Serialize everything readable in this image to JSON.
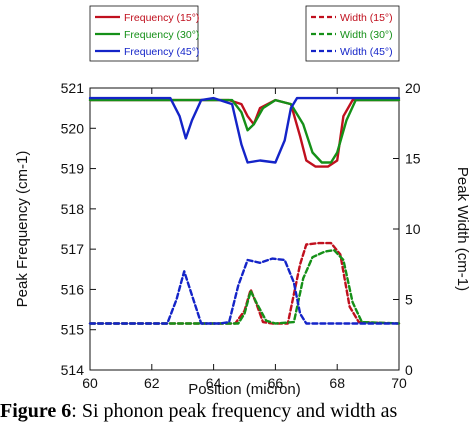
{
  "chart_data": {
    "type": "line",
    "xlabel": "Position (micron)",
    "ylabel_left": "Peak Frequency (cm-1)",
    "ylabel_right": "Peak Width (cm-1)",
    "xlim": [
      60,
      70
    ],
    "ylim_left": [
      514,
      521
    ],
    "ylim_right": [
      0,
      20
    ],
    "xticks": [
      60,
      62,
      64,
      66,
      68,
      70
    ],
    "yticks_left": [
      514,
      515,
      516,
      517,
      518,
      519,
      520,
      521
    ],
    "yticks_right": [
      0,
      5,
      10,
      15,
      20
    ],
    "grid": false,
    "legend_left": {
      "placement": "top-left",
      "entries": [
        {
          "label": "Frequency (15°)",
          "color": "#c0101e",
          "dash": "solid"
        },
        {
          "label": "Frequency (30°)",
          "color": "#159018",
          "dash": "solid"
        },
        {
          "label": "Frequency (45°)",
          "color": "#1424c8",
          "dash": "solid"
        }
      ]
    },
    "legend_right": {
      "placement": "top-right",
      "entries": [
        {
          "label": "Width (15°)",
          "color": "#c0101e",
          "dash": "dashed"
        },
        {
          "label": "Width (30°)",
          "color": "#159018",
          "dash": "dashed"
        },
        {
          "label": "Width (45°)",
          "color": "#1424c8",
          "dash": "dashed"
        }
      ]
    },
    "series": [
      {
        "name": "Frequency (15°)",
        "axis": "left",
        "color": "#c0101e",
        "dash": "solid",
        "x": [
          60,
          64.5,
          64.9,
          65.1,
          65.3,
          65.5,
          66.0,
          66.5,
          66.8,
          67.0,
          67.3,
          67.7,
          68.0,
          68.2,
          68.5,
          70
        ],
        "y": [
          520.7,
          520.7,
          520.6,
          520.3,
          520.1,
          520.5,
          520.7,
          520.6,
          519.8,
          519.2,
          519.05,
          519.05,
          519.2,
          520.3,
          520.7,
          520.7
        ]
      },
      {
        "name": "Frequency (30°)",
        "axis": "left",
        "color": "#159018",
        "dash": "solid",
        "x": [
          60,
          64.6,
          64.9,
          65.1,
          65.3,
          65.6,
          66.0,
          66.5,
          66.9,
          67.2,
          67.5,
          67.8,
          68.0,
          68.3,
          68.6,
          70
        ],
        "y": [
          520.7,
          520.7,
          520.4,
          519.95,
          520.1,
          520.5,
          520.7,
          520.6,
          520.1,
          519.4,
          519.15,
          519.15,
          519.4,
          520.2,
          520.7,
          520.7
        ]
      },
      {
        "name": "Frequency (45°)",
        "axis": "left",
        "color": "#1424c8",
        "dash": "solid",
        "x": [
          60,
          62.6,
          62.9,
          63.1,
          63.3,
          63.6,
          64.0,
          64.6,
          64.9,
          65.1,
          65.5,
          66.0,
          66.3,
          66.5,
          66.7,
          67.0,
          70
        ],
        "y": [
          520.75,
          520.75,
          520.3,
          519.75,
          520.2,
          520.7,
          520.75,
          520.6,
          519.6,
          519.15,
          519.2,
          519.15,
          519.7,
          520.5,
          520.75,
          520.75,
          520.75
        ]
      },
      {
        "name": "Width (15°)",
        "axis": "right",
        "color": "#c0101e",
        "dash": "dashed",
        "x": [
          60,
          64.7,
          65.0,
          65.2,
          65.4,
          65.6,
          65.9,
          66.4,
          66.8,
          67.0,
          67.4,
          67.8,
          68.1,
          68.4,
          68.7,
          70
        ],
        "y": [
          3.3,
          3.3,
          4.2,
          5.7,
          4.6,
          3.4,
          3.3,
          3.3,
          7.5,
          8.9,
          9.0,
          9.0,
          8.2,
          4.5,
          3.4,
          3.3
        ]
      },
      {
        "name": "Width (30°)",
        "axis": "right",
        "color": "#159018",
        "dash": "dashed",
        "x": [
          60,
          64.8,
          65.0,
          65.2,
          65.4,
          65.7,
          66.0,
          66.6,
          66.9,
          67.2,
          67.6,
          67.9,
          68.2,
          68.5,
          68.8,
          70
        ],
        "y": [
          3.3,
          3.3,
          4.0,
          5.6,
          4.7,
          3.5,
          3.3,
          3.4,
          6.5,
          8.0,
          8.4,
          8.5,
          7.8,
          4.8,
          3.4,
          3.3
        ]
      },
      {
        "name": "Width (45°)",
        "axis": "right",
        "color": "#1424c8",
        "dash": "dashed",
        "x": [
          60,
          62.5,
          62.8,
          63.05,
          63.3,
          63.6,
          64.2,
          64.5,
          64.8,
          65.1,
          65.5,
          65.9,
          66.3,
          66.6,
          66.8,
          67.0,
          70
        ],
        "y": [
          3.3,
          3.3,
          5.0,
          7.0,
          5.3,
          3.3,
          3.3,
          3.4,
          6.0,
          7.8,
          7.6,
          7.9,
          7.8,
          6.2,
          4.0,
          3.3,
          3.3
        ]
      }
    ]
  },
  "caption": {
    "prefix": "Figure 6",
    "text": ": Si phonon peak frequency and width as"
  }
}
